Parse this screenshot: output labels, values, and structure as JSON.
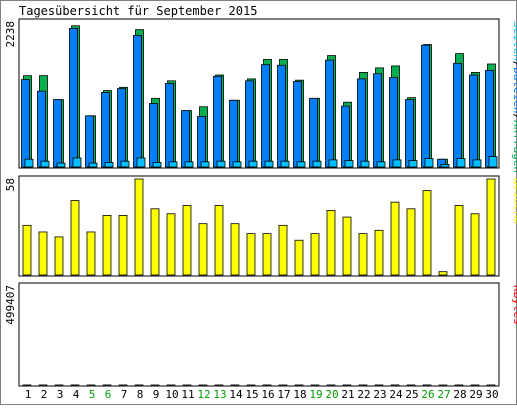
{
  "title": "Tagesübersicht für September 2015",
  "colors": {
    "background": "#ffffff",
    "plot_background": "#ffffff",
    "border": "#000000",
    "anfragen": "#00b050",
    "dateien": "#0080ff",
    "seiten": "#00c0ff",
    "besuche": "#ffff00",
    "kbytes": "#ff0000",
    "weekday_label": "#000000",
    "weekend_label": "#00a000"
  },
  "chart_data": [
    {
      "type": "bar",
      "panel": "hits",
      "y_max_label": "2238",
      "ylim": [
        0,
        2238
      ],
      "legend": [
        "Seiten",
        "/",
        "Dateien",
        "/",
        "Anfragen"
      ],
      "categories": [
        "1",
        "2",
        "3",
        "4",
        "5",
        "6",
        "7",
        "8",
        "9",
        "10",
        "11",
        "12",
        "13",
        "14",
        "15",
        "16",
        "17",
        "18",
        "19",
        "20",
        "21",
        "22",
        "23",
        "24",
        "25",
        "26",
        "27",
        "28",
        "29",
        "30"
      ],
      "series": [
        {
          "name": "Anfragen",
          "values": [
            1410,
            1410,
            1040,
            2180,
            790,
            1180,
            1230,
            2120,
            1060,
            1330,
            870,
            930,
            1420,
            1030,
            1360,
            1660,
            1660,
            1340,
            1060,
            1720,
            1000,
            1460,
            1530,
            1560,
            1070,
            1890,
            120,
            1750,
            1460,
            1590
          ]
        },
        {
          "name": "Dateien",
          "values": [
            1350,
            1170,
            1040,
            2140,
            790,
            1150,
            1210,
            2030,
            980,
            1290,
            870,
            780,
            1400,
            1030,
            1330,
            1580,
            1570,
            1320,
            1060,
            1650,
            940,
            1360,
            1440,
            1380,
            1040,
            1880,
            120,
            1600,
            1420,
            1490
          ]
        },
        {
          "name": "Seiten",
          "values": [
            120,
            90,
            60,
            140,
            60,
            70,
            90,
            140,
            70,
            80,
            80,
            80,
            90,
            80,
            90,
            90,
            90,
            80,
            90,
            110,
            100,
            90,
            80,
            110,
            100,
            130,
            40,
            130,
            110,
            160
          ]
        }
      ]
    },
    {
      "type": "bar",
      "panel": "visits",
      "y_max_label": "58",
      "ylim": [
        0,
        58
      ],
      "legend": [
        "Besuche"
      ],
      "categories": [
        "1",
        "2",
        "3",
        "4",
        "5",
        "6",
        "7",
        "8",
        "9",
        "10",
        "11",
        "12",
        "13",
        "14",
        "15",
        "16",
        "17",
        "18",
        "19",
        "20",
        "21",
        "22",
        "23",
        "24",
        "25",
        "26",
        "27",
        "28",
        "29",
        "30"
      ],
      "series": [
        {
          "name": "Besuche",
          "values": [
            30,
            26,
            23,
            45,
            26,
            36,
            36,
            58,
            40,
            37,
            42,
            31,
            42,
            31,
            25,
            25,
            30,
            21,
            25,
            39,
            35,
            25,
            27,
            44,
            40,
            51,
            2,
            42,
            37,
            58
          ]
        }
      ]
    },
    {
      "type": "bar",
      "panel": "kbytes",
      "y_max_label": "499407",
      "ylim": [
        0,
        499407
      ],
      "legend": [
        "KBytes"
      ],
      "categories": [
        "1",
        "2",
        "3",
        "4",
        "5",
        "6",
        "7",
        "8",
        "9",
        "10",
        "11",
        "12",
        "13",
        "14",
        "15",
        "16",
        "17",
        "18",
        "19",
        "20",
        "21",
        "22",
        "23",
        "24",
        "25",
        "26",
        "27",
        "28",
        "29",
        "30"
      ],
      "series": [
        {
          "name": "KBytes",
          "values": [
            325,
            380,
            230,
            499,
            238,
            375,
            263,
            360,
            140,
            275,
            186,
            230,
            230,
            305,
            252,
            365,
            237,
            320,
            202,
            340,
            227,
            290,
            375,
            430,
            305,
            435,
            30,
            295,
            310,
            275
          ]
        }
      ]
    }
  ],
  "day_labels": [
    {
      "text": "1",
      "weekend": false
    },
    {
      "text": "2",
      "weekend": false
    },
    {
      "text": "3",
      "weekend": false
    },
    {
      "text": "4",
      "weekend": false
    },
    {
      "text": "5",
      "weekend": true
    },
    {
      "text": "6",
      "weekend": true
    },
    {
      "text": "7",
      "weekend": false
    },
    {
      "text": "8",
      "weekend": false
    },
    {
      "text": "9",
      "weekend": false
    },
    {
      "text": "10",
      "weekend": false
    },
    {
      "text": "11",
      "weekend": false
    },
    {
      "text": "12",
      "weekend": true
    },
    {
      "text": "13",
      "weekend": true
    },
    {
      "text": "14",
      "weekend": false
    },
    {
      "text": "15",
      "weekend": false
    },
    {
      "text": "16",
      "weekend": false
    },
    {
      "text": "17",
      "weekend": false
    },
    {
      "text": "18",
      "weekend": false
    },
    {
      "text": "19",
      "weekend": true
    },
    {
      "text": "20",
      "weekend": true
    },
    {
      "text": "21",
      "weekend": false
    },
    {
      "text": "22",
      "weekend": false
    },
    {
      "text": "23",
      "weekend": false
    },
    {
      "text": "24",
      "weekend": false
    },
    {
      "text": "25",
      "weekend": false
    },
    {
      "text": "26",
      "weekend": true
    },
    {
      "text": "27",
      "weekend": true
    },
    {
      "text": "28",
      "weekend": false
    },
    {
      "text": "29",
      "weekend": false
    },
    {
      "text": "30",
      "weekend": false
    }
  ]
}
